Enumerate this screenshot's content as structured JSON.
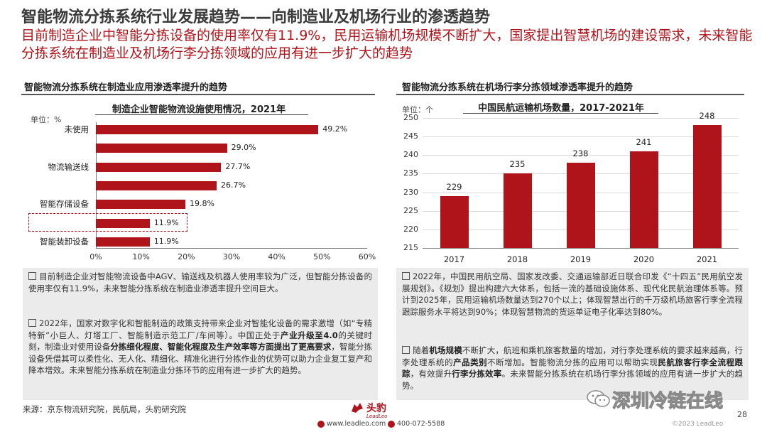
{
  "header": {
    "title": "智能物流分拣系统行业发展趋势——向制造业及机场行业的渗透趋势",
    "subtitle": "目前制造企业中智能分拣设备的使用率仅有11.9%，民用运输机场规模不断扩大，国家提出智慧机场的建设需求，未来智能分拣系统在制造业及机场行李分拣领域的应用有进一步扩大的趋势"
  },
  "left": {
    "section_title": "智能物流分拣系统在制造业应用渗透率提升的趋势",
    "notes": {
      "p1": "目前制造企业对智能物流设备中AGV、输送线及机器人使用率较为广泛，但智能分拣设备的使用率仅有11.9%，未来智能分拣系统在制造业渗透率提升空间巨大。",
      "p2_a": "2022年，国家对数字化和智能制造的政策支持带来企业对智能化设备的需求激增（如“专精特新”小巨人、灯塔工厂、智能制造示范工厂/车间等）。中国正处于",
      "p2_b": "产业升级至4.0",
      "p2_c": "的关键时刻，制造业对使用设备",
      "p2_d": "分拣细化程度、智能化程度及生产效率等方面提出了更高要求",
      "p2_e": "，智能分拣设备凭借其可以柔性化、无人化、精细化、精准化进行分拣作业的优势可以助力企业复工复产和降本增效。未来智能分拣系统在制造业分拣环节的应用有进一步扩大的趋势。"
    }
  },
  "right": {
    "section_title": "智能物流分拣系统在机场行李分拣领域渗透率提升的趋势",
    "notes": {
      "p1": "2022年，中国民用航空局、国家发改委、交通运输部近日联合印发《“十四五”民用航空发展规划》。《规划》提出构建六大体系，包括一流的基础设施体系、现代化民航治理体系等。预计到2025年，民用运输机场数量达到270个以上；体现智慧出行的千万级机场旅客行李全流程跟踪服务水平将达到90%；体现智慧物流的货运单证电子化率达到80%。",
      "p2_a": "随着",
      "p2_b": "机场规模",
      "p2_c": "不断扩大，航班和乘机旅客数量的增加，对行李处理系统的要求越来越高，行李处理系统的",
      "p2_d": "产品类别",
      "p2_e": "不断增加。智能物流分拣的应用可以帮助实现",
      "p2_f": "民航旅客行李全流程跟踪",
      "p2_g": "，有效提升",
      "p2_h": "行李分拣效率",
      "p2_i": "。未来智能分拣系统在机场行李分拣领域的应用有进一步扩大的趋势。"
    }
  },
  "footer": {
    "source": "来源：京东物流研究院，民航局，头豹研究院",
    "brand_name": "头豹",
    "brand_sub": "LeadLeo",
    "website": "www.leadleo.com",
    "phone": "400-072-5588",
    "watermark": "深圳冷链在线",
    "page_number": "28",
    "copyright": "©2023 LeadLeo"
  },
  "colors": {
    "accent": "#b0141b",
    "note_bg": "#ebebeb"
  },
  "chart_data": [
    {
      "type": "bar",
      "orientation": "horizontal",
      "title": "制造企业智能物流设施使用情况，2021年",
      "unit_label": "单位：%",
      "categories": [
        "未使用",
        "",
        "物流输送线",
        "",
        "智能存储设备",
        "",
        "智能装卸设备"
      ],
      "values": [
        49.2,
        29.0,
        27.7,
        26.7,
        19.8,
        11.9,
        11.9
      ],
      "value_labels": [
        "49.2%",
        "29.0%",
        "27.7%",
        "26.7%",
        "19.8%",
        "11.9%",
        "11.9%"
      ],
      "x_ticks": [
        "0%",
        "10%",
        "20%",
        "30%",
        "40%",
        "50%",
        "60%"
      ],
      "xlim": [
        0,
        60
      ],
      "highlighted_index": 5,
      "grid": false
    },
    {
      "type": "bar",
      "title": "中国民航运输机场数量，2017-2021年",
      "unit_label": "单位：个",
      "categories": [
        "2017",
        "2018",
        "2019",
        "2020",
        "2021"
      ],
      "values": [
        229,
        235,
        238,
        241,
        248
      ],
      "y_ticks": [
        "215",
        "220",
        "225",
        "230",
        "235",
        "240",
        "245",
        "250"
      ],
      "ylim": [
        215,
        250
      ],
      "grid": true
    }
  ]
}
